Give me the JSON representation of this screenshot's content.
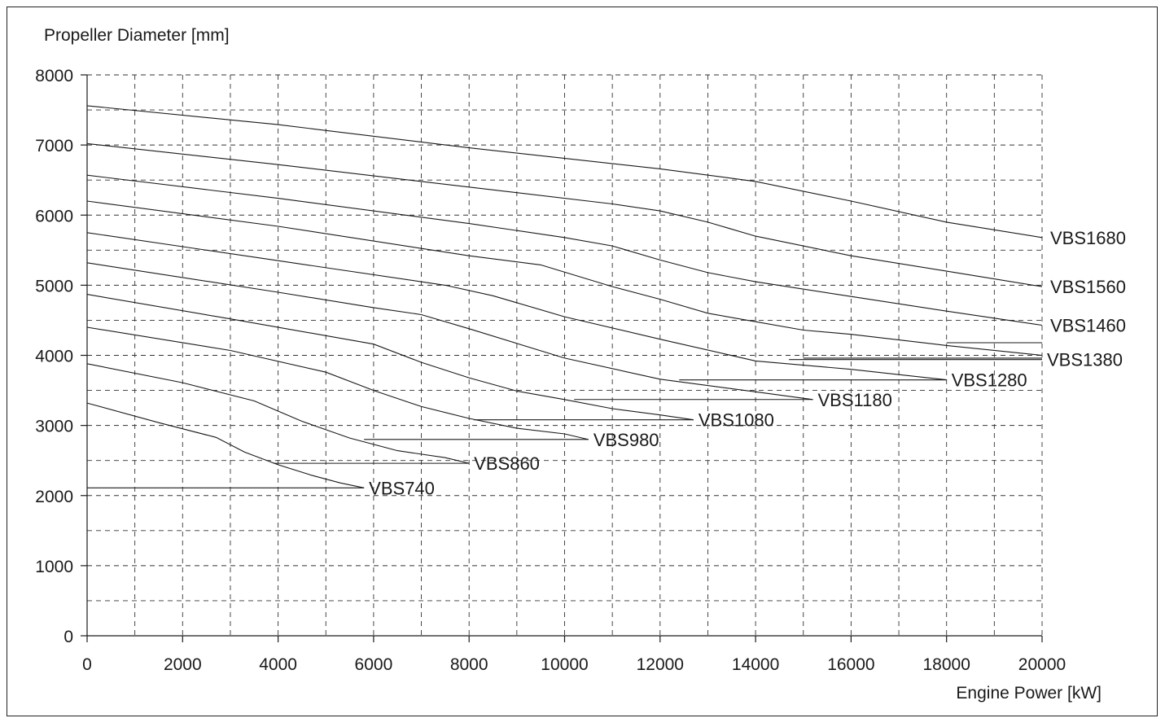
{
  "chart_data": {
    "type": "line",
    "title": "",
    "ylabel": "Propeller Diameter [mm]",
    "xlabel": "Engine Power [kW]",
    "xlim": [
      0,
      20000
    ],
    "ylim": [
      0,
      8000
    ],
    "x_ticks": [
      "0",
      "2000",
      "4000",
      "6000",
      "8000",
      "10000",
      "12000",
      "14000",
      "16000",
      "18000",
      "20000"
    ],
    "y_ticks": [
      "0",
      "1000",
      "2000",
      "3000",
      "4000",
      "5000",
      "6000",
      "7000",
      "8000"
    ],
    "grid": true,
    "series": [
      {
        "name": "VBS1680",
        "points": [
          [
            0,
            7560
          ],
          [
            4000,
            7290
          ],
          [
            8000,
            6960
          ],
          [
            12000,
            6660
          ],
          [
            14000,
            6480
          ],
          [
            16000,
            6200
          ],
          [
            18000,
            5900
          ],
          [
            20000,
            5680
          ]
        ],
        "leader": null
      },
      {
        "name": "VBS1560",
        "points": [
          [
            0,
            7020
          ],
          [
            4000,
            6720
          ],
          [
            8000,
            6400
          ],
          [
            11000,
            6160
          ],
          [
            12000,
            6060
          ],
          [
            13000,
            5900
          ],
          [
            14000,
            5700
          ],
          [
            16000,
            5420
          ],
          [
            18000,
            5200
          ],
          [
            20000,
            4980
          ]
        ],
        "leader": null
      },
      {
        "name": "VBS1460",
        "points": [
          [
            0,
            6570
          ],
          [
            4000,
            6240
          ],
          [
            8000,
            5880
          ],
          [
            10000,
            5680
          ],
          [
            11000,
            5560
          ],
          [
            12000,
            5360
          ],
          [
            13000,
            5180
          ],
          [
            14000,
            5050
          ],
          [
            16000,
            4840
          ],
          [
            18000,
            4630
          ],
          [
            20000,
            4430
          ]
        ],
        "leader": null
      },
      {
        "name": "VBS1380",
        "points": [
          [
            0,
            6200
          ],
          [
            4000,
            5840
          ],
          [
            8000,
            5420
          ],
          [
            9500,
            5290
          ],
          [
            11000,
            4980
          ],
          [
            12000,
            4800
          ],
          [
            13000,
            4600
          ],
          [
            14000,
            4480
          ],
          [
            15000,
            4360
          ],
          [
            16000,
            4300
          ],
          [
            18000,
            4140
          ],
          [
            20000,
            4000
          ]
        ],
        "leader": [
          14700,
          3940,
          20000,
          3940
        ]
      },
      {
        "name": "VBS1280",
        "points": [
          [
            0,
            5750
          ],
          [
            4000,
            5350
          ],
          [
            7500,
            5000
          ],
          [
            8500,
            4850
          ],
          [
            10000,
            4550
          ],
          [
            12000,
            4230
          ],
          [
            14000,
            3920
          ],
          [
            16000,
            3800
          ],
          [
            18000,
            3650
          ]
        ],
        "leader": [
          12400,
          3650,
          18000,
          3650
        ]
      },
      {
        "name": "VBS1180",
        "points": [
          [
            0,
            5320
          ],
          [
            4000,
            4900
          ],
          [
            6000,
            4680
          ],
          [
            7000,
            4580
          ],
          [
            8000,
            4380
          ],
          [
            10000,
            3960
          ],
          [
            12000,
            3660
          ],
          [
            14000,
            3480
          ],
          [
            15200,
            3370
          ]
        ],
        "leader": [
          10200,
          3370,
          15200,
          3370
        ]
      },
      {
        "name": "VBS1080",
        "points": [
          [
            0,
            4870
          ],
          [
            3000,
            4520
          ],
          [
            6000,
            4160
          ],
          [
            7000,
            3900
          ],
          [
            8000,
            3680
          ],
          [
            9000,
            3490
          ],
          [
            10000,
            3370
          ],
          [
            11000,
            3240
          ],
          [
            12000,
            3150
          ],
          [
            12700,
            3080
          ]
        ],
        "leader": [
          8100,
          3080,
          12700,
          3080
        ]
      },
      {
        "name": "VBS980",
        "points": [
          [
            0,
            4400
          ],
          [
            3000,
            4070
          ],
          [
            5000,
            3760
          ],
          [
            6000,
            3500
          ],
          [
            7000,
            3270
          ],
          [
            8000,
            3100
          ],
          [
            9000,
            2960
          ],
          [
            10000,
            2880
          ],
          [
            10500,
            2800
          ]
        ],
        "leader": [
          5800,
          2800,
          10500,
          2800
        ]
      },
      {
        "name": "VBS860",
        "points": [
          [
            0,
            3880
          ],
          [
            2000,
            3610
          ],
          [
            3500,
            3350
          ],
          [
            4500,
            3060
          ],
          [
            5500,
            2820
          ],
          [
            6500,
            2640
          ],
          [
            7500,
            2540
          ],
          [
            8000,
            2460
          ]
        ],
        "leader": [
          3900,
          2460,
          8000,
          2460
        ]
      },
      {
        "name": "VBS740",
        "points": [
          [
            0,
            3320
          ],
          [
            1500,
            3040
          ],
          [
            2700,
            2830
          ],
          [
            3300,
            2620
          ],
          [
            4000,
            2440
          ],
          [
            4700,
            2290
          ],
          [
            5300,
            2180
          ],
          [
            5800,
            2110
          ]
        ],
        "leader": [
          0,
          2110,
          5800,
          2110
        ]
      }
    ],
    "series_labels": [
      "VBS1680",
      "VBS1560",
      "VBS1460",
      "VBS1380",
      "VBS1280",
      "VBS1180",
      "VBS1080",
      "VBS980",
      "VBS860",
      "VBS740"
    ],
    "extra_lines": [
      [
        15000,
        3960,
        20000,
        3960
      ],
      [
        18000,
        4180,
        20000,
        4180
      ]
    ]
  }
}
